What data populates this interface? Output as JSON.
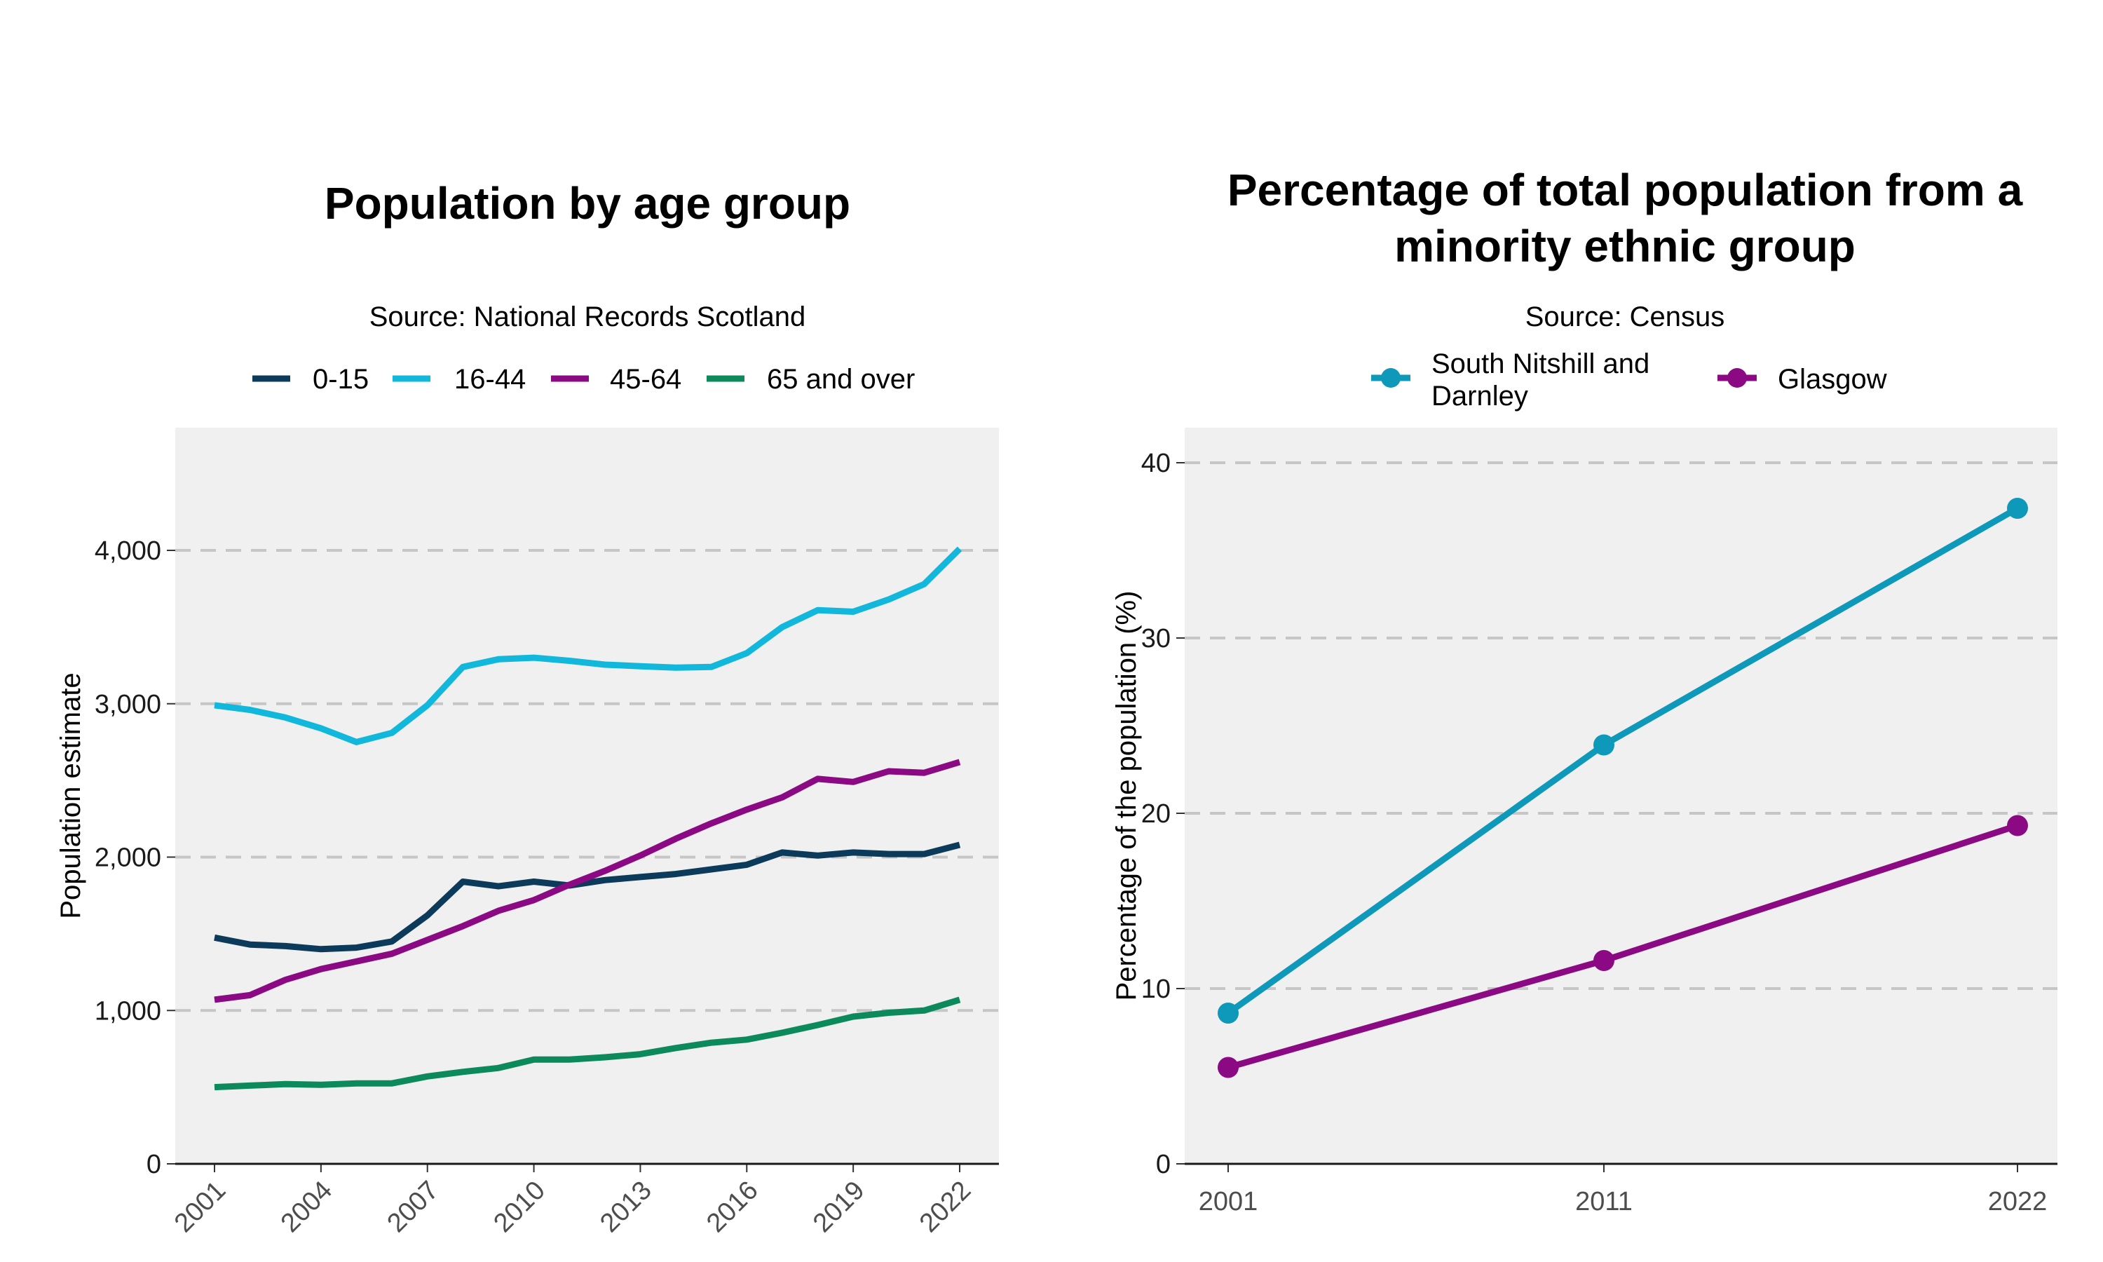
{
  "chart_data": [
    {
      "type": "line",
      "title": "Population by age group",
      "subtitle": "Source: National Records Scotland",
      "xlabel": "",
      "ylabel": "Population estimate",
      "x": [
        2001,
        2002,
        2003,
        2004,
        2005,
        2006,
        2007,
        2008,
        2009,
        2010,
        2011,
        2012,
        2013,
        2014,
        2015,
        2016,
        2017,
        2018,
        2019,
        2020,
        2021,
        2022
      ],
      "xticks": [
        "2001",
        "2004",
        "2007",
        "2010",
        "2013",
        "2016",
        "2019",
        "2022"
      ],
      "yticks": [
        "0",
        "1,000",
        "2,000",
        "3,000",
        "4,000"
      ],
      "ylim": [
        0,
        4800
      ],
      "series": [
        {
          "name": "0-15",
          "color": "#0b3a5b",
          "values": [
            1475,
            1430,
            1420,
            1400,
            1410,
            1450,
            1620,
            1840,
            1810,
            1840,
            1815,
            1850,
            1870,
            1890,
            1920,
            1950,
            2030,
            2010,
            2030,
            2020,
            2020,
            2080
          ]
        },
        {
          "name": "16-44",
          "color": "#12b8dc",
          "values": [
            2990,
            2960,
            2910,
            2840,
            2750,
            2810,
            2990,
            3240,
            3290,
            3300,
            3280,
            3255,
            3245,
            3235,
            3240,
            3330,
            3500,
            3610,
            3600,
            3680,
            3780,
            4010
          ]
        },
        {
          "name": "45-64",
          "color": "#8b0a84",
          "values": [
            1070,
            1100,
            1200,
            1270,
            1320,
            1370,
            1460,
            1550,
            1650,
            1720,
            1820,
            1910,
            2010,
            2120,
            2220,
            2310,
            2390,
            2510,
            2490,
            2560,
            2550,
            2620
          ]
        },
        {
          "name": "65 and over",
          "color": "#0c8a5c",
          "values": [
            500,
            510,
            520,
            515,
            525,
            525,
            570,
            600,
            625,
            680,
            680,
            695,
            715,
            755,
            790,
            810,
            855,
            905,
            960,
            985,
            1000,
            1070
          ]
        }
      ],
      "grid": "horizontal dashed",
      "legend": "top"
    },
    {
      "type": "line",
      "title": "Percentage of total population from a minority ethnic group",
      "title_lines": [
        "Percentage of total population from a",
        "minority ethnic group"
      ],
      "subtitle": "Source: Census",
      "xlabel": "",
      "ylabel": "Percentage of the population (%)",
      "x": [
        2001,
        2011,
        2022
      ],
      "xticks": [
        "2001",
        "2011",
        "2022"
      ],
      "yticks": [
        "0",
        "10",
        "20",
        "30",
        "40"
      ],
      "ylim": [
        0,
        42
      ],
      "series": [
        {
          "name": "South Nitshill and Darnley",
          "name_lines": [
            "South Nitshill and",
            "Darnley"
          ],
          "color": "#0e98b9",
          "values": [
            8.6,
            23.9,
            37.4
          ]
        },
        {
          "name": "Glasgow",
          "name_lines": [
            "Glasgow"
          ],
          "color": "#8b0a84",
          "values": [
            5.5,
            11.6,
            19.3
          ]
        }
      ],
      "grid": "horizontal dashed",
      "legend": "top"
    }
  ]
}
